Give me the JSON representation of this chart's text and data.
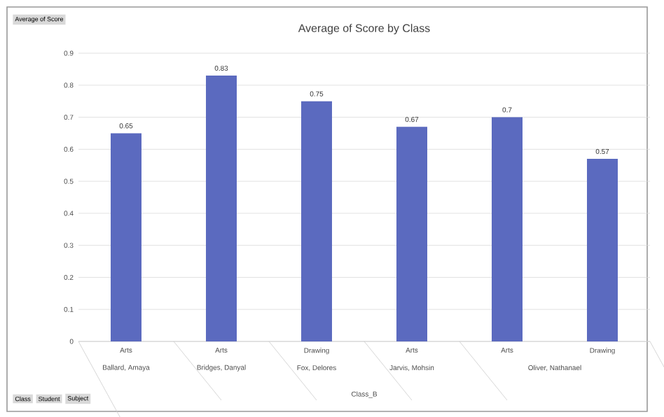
{
  "chart_data": {
    "type": "bar",
    "title": "Average of Score by Class",
    "categories": [
      "Arts",
      "Arts",
      "Drawing",
      "Arts",
      "Arts",
      "Drawing"
    ],
    "values": [
      0.65,
      0.83,
      0.75,
      0.67,
      0.7,
      0.57
    ],
    "color": "#5b6abf",
    "ylim": [
      0,
      0.9
    ],
    "yticks": [
      0,
      0.1,
      0.2,
      0.3,
      0.4,
      0.5,
      0.6,
      0.7,
      0.8,
      0.9
    ],
    "grid": "y",
    "data_labels": true,
    "annotations": [
      "Ballard, Amaya",
      "Bridges, Danyal",
      "Fox, Delores",
      "Jarvis, Mohsin",
      "Oliver, Nathanael",
      "Class_B",
      "Average of Score",
      "Class",
      "Student",
      "Subject"
    ]
  }
}
